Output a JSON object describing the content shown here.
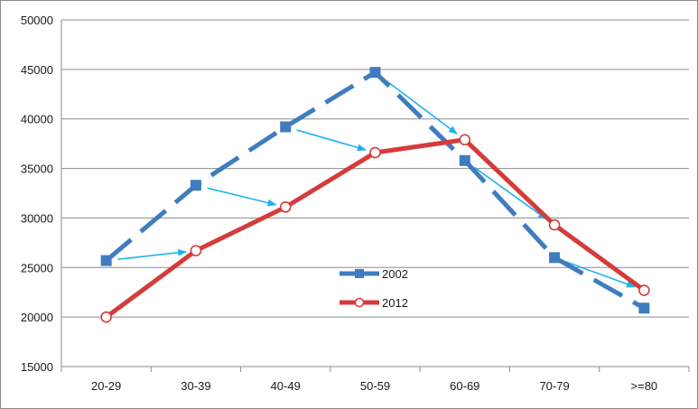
{
  "chart_data": {
    "type": "line",
    "categories": [
      "20-29",
      "30-39",
      "40-49",
      "50-59",
      "60-69",
      "70-79",
      ">=80"
    ],
    "series": [
      {
        "name": "2002",
        "values": [
          25700,
          33300,
          39200,
          44700,
          35800,
          26000,
          20900
        ],
        "color": "#3f7cc0",
        "line_style": "dashed",
        "marker": "square-filled"
      },
      {
        "name": "2012",
        "values": [
          20000,
          26700,
          31100,
          36600,
          37900,
          29300,
          22700
        ],
        "color": "#d33c3a",
        "line_style": "solid",
        "marker": "circle-hollow"
      }
    ],
    "ylim": [
      15000,
      50000
    ],
    "yticks": [
      15000,
      20000,
      25000,
      30000,
      35000,
      40000,
      45000,
      50000
    ],
    "grid": "horizontal",
    "legend": "center",
    "arrow_color": "#1fb2ec",
    "arrows": "from each 2002 point toward the next-category 2012 point"
  }
}
